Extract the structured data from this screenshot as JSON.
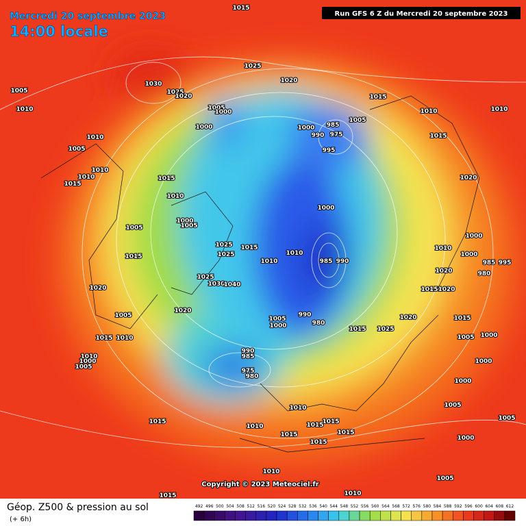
{
  "header": {
    "date_title": "Mercredi 20 septembre 2023",
    "time_label": "14:00 locale",
    "run_label": "Run GFS 6 Z du Mercredi 20 septembre 2023"
  },
  "isobar_labels": [
    "1015",
    "1030",
    "1025",
    "1020",
    "1025",
    "1020",
    "1005",
    "1010",
    "1005",
    "1000",
    "1000",
    "1000",
    "985",
    "990",
    "975",
    "1005",
    "995",
    "1015",
    "1010",
    "1010",
    "1015",
    "1010",
    "1005",
    "1010",
    "1010",
    "1015",
    "1015",
    "1010",
    "1020",
    "1000",
    "1000",
    "1005",
    "1005",
    "1025",
    "1025",
    "1015",
    "1010",
    "1010",
    "985",
    "990",
    "1010",
    "1000",
    "1000",
    "985",
    "995",
    "980",
    "1015",
    "1020",
    "1025",
    "1030",
    "1040",
    "1020",
    "1015",
    "1020",
    "1020",
    "1005",
    "1005",
    "1000",
    "990",
    "980",
    "1020",
    "1015",
    "1015",
    "1025",
    "1005",
    "1000",
    "1015",
    "1010",
    "990",
    "985",
    "1010",
    "1000",
    "1005",
    "1000",
    "975",
    "980",
    "1000",
    "1005",
    "1010",
    "1015",
    "1015",
    "1015",
    "1015",
    "1010",
    "1015",
    "1005",
    "1015",
    "1000",
    "1010",
    "1005",
    "1010",
    "1015"
  ],
  "footer": {
    "title": "Géop. Z500 & pression au sol",
    "subtitle": "(+ 6h)",
    "copyright": "Copyright © 2023 Meteociel.fr"
  },
  "colorbar": {
    "ticks": [
      492,
      496,
      500,
      504,
      508,
      512,
      516,
      520,
      524,
      528,
      532,
      536,
      540,
      544,
      548,
      552,
      556,
      560,
      564,
      568,
      572,
      576,
      580,
      584,
      588,
      592,
      596,
      600,
      604,
      608,
      612
    ]
  }
}
